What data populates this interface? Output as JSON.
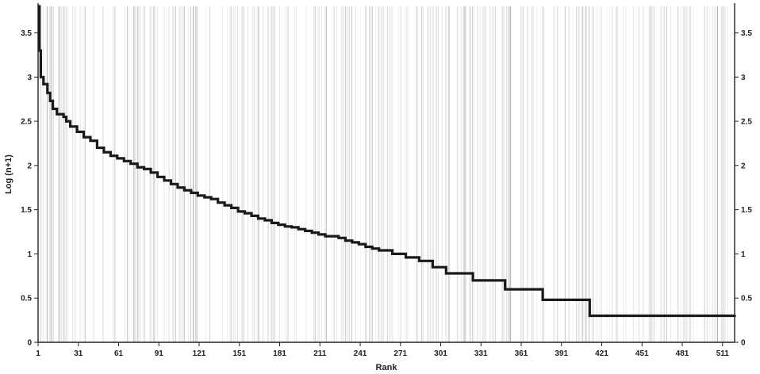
{
  "chart_data": {
    "type": "line",
    "xlabel": "Rank",
    "ylabel": "Log (n+1)",
    "xlim": [
      1,
      520
    ],
    "ylim": [
      0,
      3.8
    ],
    "x_ticks": [
      1,
      31,
      61,
      91,
      121,
      151,
      181,
      211,
      241,
      271,
      301,
      331,
      361,
      391,
      421,
      451,
      481,
      511
    ],
    "y_ticks_left": [
      0,
      0.5,
      1,
      1.5,
      2,
      2.5,
      3,
      3.5
    ],
    "y_ticks_right": [
      0,
      0.5,
      1,
      1.5,
      2,
      2.5,
      3,
      3.5
    ],
    "grid": false,
    "background": "dense vertical gray lines",
    "line_color": "#1a1a1a",
    "series": [
      {
        "points": [
          [
            1,
            3.8
          ],
          [
            2,
            3.3
          ],
          [
            3,
            3.0
          ],
          [
            5,
            2.92
          ],
          [
            8,
            2.82
          ],
          [
            10,
            2.73
          ],
          [
            12,
            2.64
          ],
          [
            15,
            2.58
          ],
          [
            20,
            2.55
          ],
          [
            22,
            2.5
          ],
          [
            25,
            2.44
          ],
          [
            30,
            2.38
          ],
          [
            35,
            2.32
          ],
          [
            40,
            2.28
          ],
          [
            45,
            2.2
          ],
          [
            50,
            2.15
          ],
          [
            55,
            2.11
          ],
          [
            60,
            2.08
          ],
          [
            65,
            2.05
          ],
          [
            70,
            2.02
          ],
          [
            75,
            1.98
          ],
          [
            80,
            1.96
          ],
          [
            85,
            1.92
          ],
          [
            90,
            1.87
          ],
          [
            95,
            1.83
          ],
          [
            100,
            1.79
          ],
          [
            105,
            1.75
          ],
          [
            110,
            1.72
          ],
          [
            115,
            1.69
          ],
          [
            120,
            1.66
          ],
          [
            125,
            1.64
          ],
          [
            130,
            1.62
          ],
          [
            135,
            1.58
          ],
          [
            140,
            1.55
          ],
          [
            145,
            1.52
          ],
          [
            150,
            1.48
          ],
          [
            155,
            1.46
          ],
          [
            160,
            1.43
          ],
          [
            165,
            1.4
          ],
          [
            170,
            1.38
          ],
          [
            175,
            1.35
          ],
          [
            180,
            1.33
          ],
          [
            185,
            1.31
          ],
          [
            190,
            1.3
          ],
          [
            195,
            1.28
          ],
          [
            200,
            1.26
          ],
          [
            205,
            1.24
          ],
          [
            210,
            1.22
          ],
          [
            215,
            1.2
          ],
          [
            225,
            1.18
          ],
          [
            230,
            1.15
          ],
          [
            235,
            1.13
          ],
          [
            240,
            1.11
          ],
          [
            245,
            1.08
          ],
          [
            250,
            1.06
          ],
          [
            255,
            1.04
          ],
          [
            265,
            1.0
          ],
          [
            275,
            0.96
          ],
          [
            285,
            0.92
          ],
          [
            295,
            0.85
          ],
          [
            305,
            0.78
          ],
          [
            325,
            0.7
          ],
          [
            349,
            0.6
          ],
          [
            377,
            0.48
          ],
          [
            412,
            0.3
          ],
          [
            520,
            0.31
          ]
        ]
      }
    ]
  }
}
